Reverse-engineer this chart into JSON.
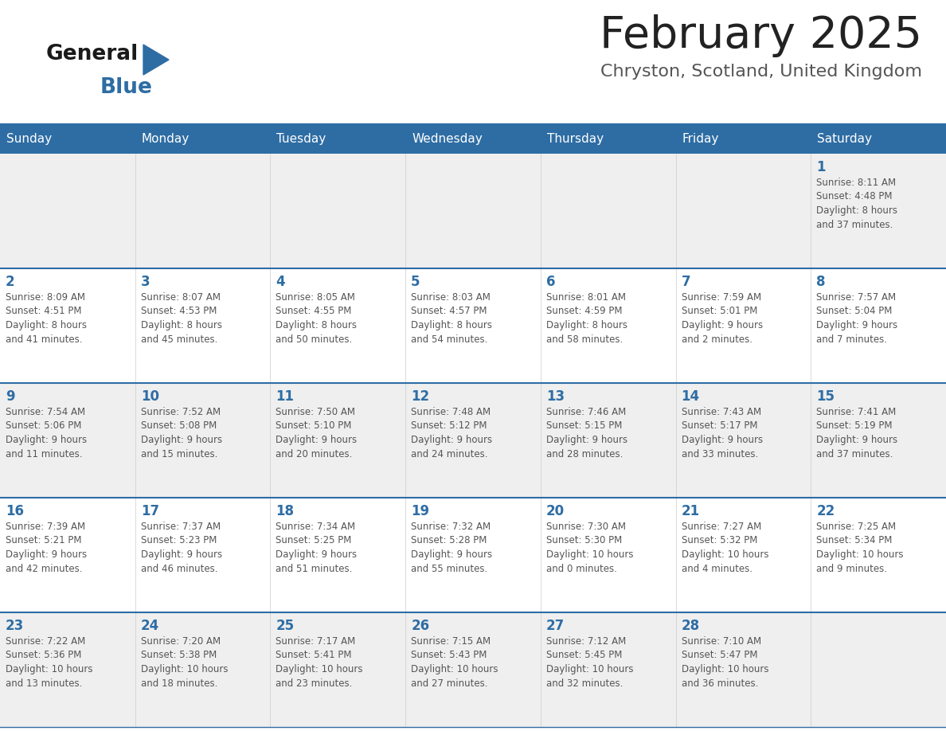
{
  "title": "February 2025",
  "subtitle": "Chryston, Scotland, United Kingdom",
  "header_bg": "#2E6DA4",
  "header_text_color": "#FFFFFF",
  "day_names": [
    "Sunday",
    "Monday",
    "Tuesday",
    "Wednesday",
    "Thursday",
    "Friday",
    "Saturday"
  ],
  "cell_bg_light": "#EFEFEF",
  "cell_bg_white": "#FFFFFF",
  "week_separator_color": "#2E6DA4",
  "day_number_color": "#2E6DA4",
  "info_text_color": "#555555",
  "title_color": "#222222",
  "subtitle_color": "#555555",
  "logo_general_color": "#1a1a1a",
  "logo_blue_color": "#2E6DA4",
  "fig_width": 11.88,
  "fig_height": 9.18,
  "weeks": [
    [
      {
        "day": null,
        "info": null
      },
      {
        "day": null,
        "info": null
      },
      {
        "day": null,
        "info": null
      },
      {
        "day": null,
        "info": null
      },
      {
        "day": null,
        "info": null
      },
      {
        "day": null,
        "info": null
      },
      {
        "day": 1,
        "info": "Sunrise: 8:11 AM\nSunset: 4:48 PM\nDaylight: 8 hours\nand 37 minutes."
      }
    ],
    [
      {
        "day": 2,
        "info": "Sunrise: 8:09 AM\nSunset: 4:51 PM\nDaylight: 8 hours\nand 41 minutes."
      },
      {
        "day": 3,
        "info": "Sunrise: 8:07 AM\nSunset: 4:53 PM\nDaylight: 8 hours\nand 45 minutes."
      },
      {
        "day": 4,
        "info": "Sunrise: 8:05 AM\nSunset: 4:55 PM\nDaylight: 8 hours\nand 50 minutes."
      },
      {
        "day": 5,
        "info": "Sunrise: 8:03 AM\nSunset: 4:57 PM\nDaylight: 8 hours\nand 54 minutes."
      },
      {
        "day": 6,
        "info": "Sunrise: 8:01 AM\nSunset: 4:59 PM\nDaylight: 8 hours\nand 58 minutes."
      },
      {
        "day": 7,
        "info": "Sunrise: 7:59 AM\nSunset: 5:01 PM\nDaylight: 9 hours\nand 2 minutes."
      },
      {
        "day": 8,
        "info": "Sunrise: 7:57 AM\nSunset: 5:04 PM\nDaylight: 9 hours\nand 7 minutes."
      }
    ],
    [
      {
        "day": 9,
        "info": "Sunrise: 7:54 AM\nSunset: 5:06 PM\nDaylight: 9 hours\nand 11 minutes."
      },
      {
        "day": 10,
        "info": "Sunrise: 7:52 AM\nSunset: 5:08 PM\nDaylight: 9 hours\nand 15 minutes."
      },
      {
        "day": 11,
        "info": "Sunrise: 7:50 AM\nSunset: 5:10 PM\nDaylight: 9 hours\nand 20 minutes."
      },
      {
        "day": 12,
        "info": "Sunrise: 7:48 AM\nSunset: 5:12 PM\nDaylight: 9 hours\nand 24 minutes."
      },
      {
        "day": 13,
        "info": "Sunrise: 7:46 AM\nSunset: 5:15 PM\nDaylight: 9 hours\nand 28 minutes."
      },
      {
        "day": 14,
        "info": "Sunrise: 7:43 AM\nSunset: 5:17 PM\nDaylight: 9 hours\nand 33 minutes."
      },
      {
        "day": 15,
        "info": "Sunrise: 7:41 AM\nSunset: 5:19 PM\nDaylight: 9 hours\nand 37 minutes."
      }
    ],
    [
      {
        "day": 16,
        "info": "Sunrise: 7:39 AM\nSunset: 5:21 PM\nDaylight: 9 hours\nand 42 minutes."
      },
      {
        "day": 17,
        "info": "Sunrise: 7:37 AM\nSunset: 5:23 PM\nDaylight: 9 hours\nand 46 minutes."
      },
      {
        "day": 18,
        "info": "Sunrise: 7:34 AM\nSunset: 5:25 PM\nDaylight: 9 hours\nand 51 minutes."
      },
      {
        "day": 19,
        "info": "Sunrise: 7:32 AM\nSunset: 5:28 PM\nDaylight: 9 hours\nand 55 minutes."
      },
      {
        "day": 20,
        "info": "Sunrise: 7:30 AM\nSunset: 5:30 PM\nDaylight: 10 hours\nand 0 minutes."
      },
      {
        "day": 21,
        "info": "Sunrise: 7:27 AM\nSunset: 5:32 PM\nDaylight: 10 hours\nand 4 minutes."
      },
      {
        "day": 22,
        "info": "Sunrise: 7:25 AM\nSunset: 5:34 PM\nDaylight: 10 hours\nand 9 minutes."
      }
    ],
    [
      {
        "day": 23,
        "info": "Sunrise: 7:22 AM\nSunset: 5:36 PM\nDaylight: 10 hours\nand 13 minutes."
      },
      {
        "day": 24,
        "info": "Sunrise: 7:20 AM\nSunset: 5:38 PM\nDaylight: 10 hours\nand 18 minutes."
      },
      {
        "day": 25,
        "info": "Sunrise: 7:17 AM\nSunset: 5:41 PM\nDaylight: 10 hours\nand 23 minutes."
      },
      {
        "day": 26,
        "info": "Sunrise: 7:15 AM\nSunset: 5:43 PM\nDaylight: 10 hours\nand 27 minutes."
      },
      {
        "day": 27,
        "info": "Sunrise: 7:12 AM\nSunset: 5:45 PM\nDaylight: 10 hours\nand 32 minutes."
      },
      {
        "day": 28,
        "info": "Sunrise: 7:10 AM\nSunset: 5:47 PM\nDaylight: 10 hours\nand 36 minutes."
      },
      {
        "day": null,
        "info": null
      }
    ]
  ]
}
